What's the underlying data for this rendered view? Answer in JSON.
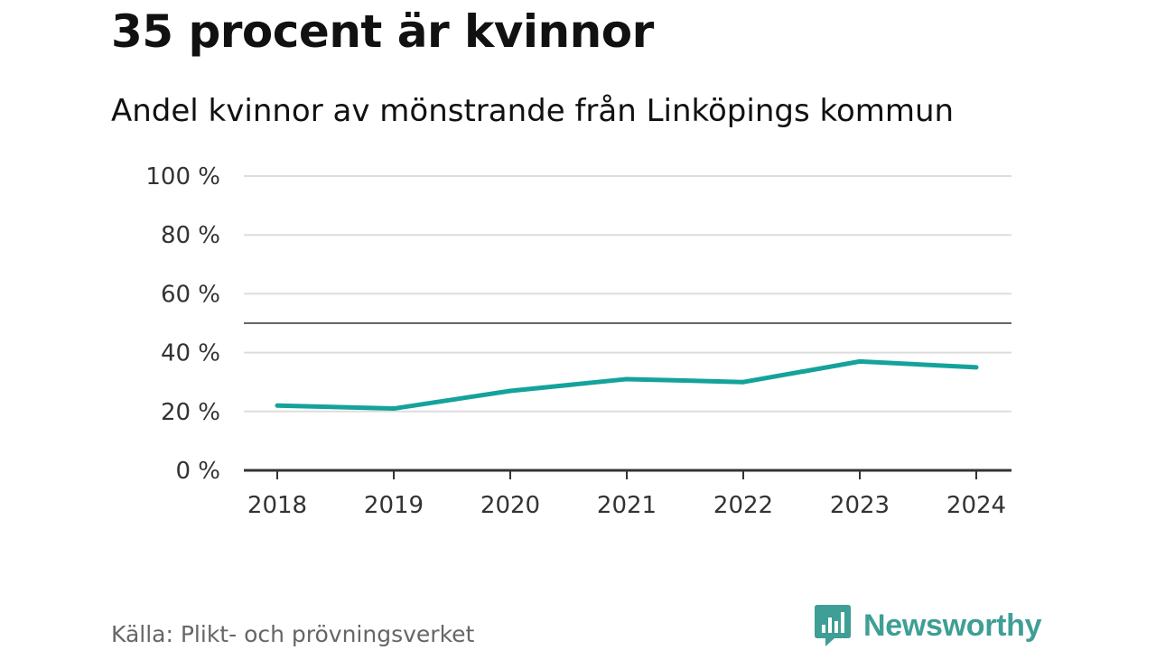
{
  "header": {
    "title": "35 procent är kvinnor",
    "subtitle": "Andel kvinnor av mönstrande från Linköpings kommun"
  },
  "footer": {
    "source": "Källa: Plikt- och prövningsverket",
    "brand": "Newsworthy"
  },
  "colors": {
    "line": "#14a39a",
    "brand": "#3f9e95",
    "grid": "#dddddd",
    "reference": "#666666",
    "axis": "#333333"
  },
  "chart_data": {
    "type": "line",
    "title": "35 procent är kvinnor",
    "subtitle": "Andel kvinnor av mönstrande från Linköpings kommun",
    "xlabel": "",
    "ylabel": "",
    "categories": [
      "2018",
      "2019",
      "2020",
      "2021",
      "2022",
      "2023",
      "2024"
    ],
    "series": [
      {
        "name": "Andel kvinnor",
        "values": [
          22,
          21,
          27,
          31,
          30,
          37,
          35
        ]
      }
    ],
    "ylim": [
      0,
      100
    ],
    "yticks": [
      0,
      20,
      40,
      60,
      80,
      100
    ],
    "ytick_labels": [
      "0 %",
      "20 %",
      "40 %",
      "60 %",
      "80 %",
      "100 %"
    ],
    "reference_line": 50,
    "grid": true,
    "legend": "none"
  }
}
